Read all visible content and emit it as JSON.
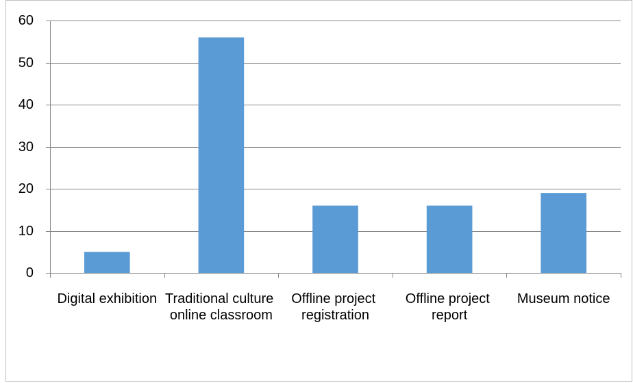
{
  "chart_data": {
    "type": "bar",
    "categories": [
      "Digital exhibition",
      "Traditional culture online classroom",
      "Offline project registration",
      "Offline project report",
      "Museum notice"
    ],
    "values": [
      5,
      56,
      16,
      16,
      19
    ],
    "color": "#5b9bd5",
    "ylim": [
      0,
      60
    ],
    "yticks": [
      0,
      10,
      20,
      30,
      40,
      50,
      60
    ],
    "grid": true
  }
}
